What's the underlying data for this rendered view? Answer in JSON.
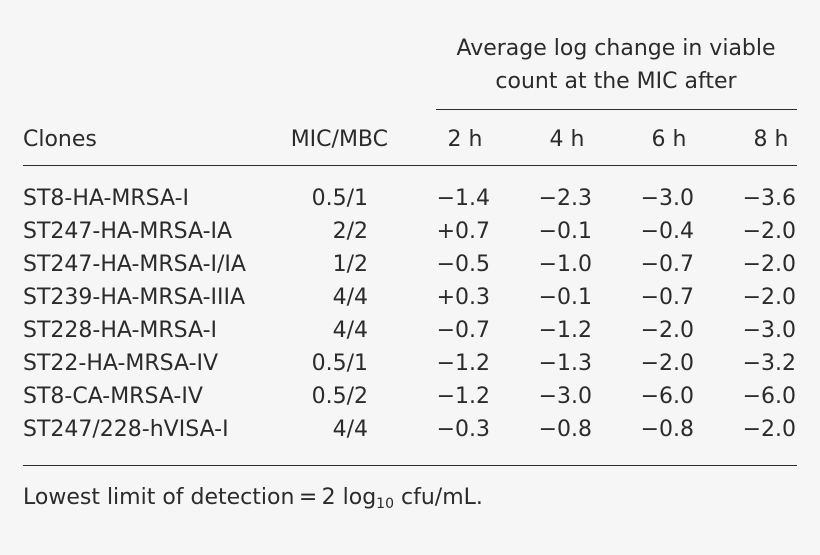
{
  "header": {
    "spanner_line1": "Average log change in viable",
    "spanner_line2": "count at the MIC after",
    "columns": [
      "Clones",
      "MIC/MBC",
      "2 h",
      "4 h",
      "6 h",
      "8 h"
    ]
  },
  "rows": [
    [
      "ST8-HA-MRSA-I",
      "0.5/1",
      "−1.4",
      "−2.3",
      "−3.0",
      "−3.6"
    ],
    [
      "ST247-HA-MRSA-IA",
      "2/2",
      "+0.7",
      "−0.1",
      "−0.4",
      "−2.0"
    ],
    [
      "ST247-HA-MRSA-I/IA",
      "1/2",
      "−0.5",
      "−1.0",
      "−0.7",
      "−2.0"
    ],
    [
      "ST239-HA-MRSA-IIIA",
      "4/4",
      "+0.3",
      "−0.1",
      "−0.7",
      "−2.0"
    ],
    [
      "ST228-HA-MRSA-I",
      "4/4",
      "−0.7",
      "−1.2",
      "−2.0",
      "−3.0"
    ],
    [
      "ST22-HA-MRSA-IV",
      "0.5/1",
      "−1.2",
      "−1.3",
      "−2.0",
      "−3.2"
    ],
    [
      "ST8-CA-MRSA-IV",
      "0.5/2",
      "−1.2",
      "−3.0",
      "−6.0",
      "−6.0"
    ],
    [
      "ST247/228-hVISA-I",
      "4/4",
      "−0.3",
      "−0.8",
      "−0.8",
      "−2.0"
    ]
  ],
  "footnote": {
    "prefix": "Lowest limit of detection = 2 log",
    "subscript": "10",
    "suffix": " cfu/mL."
  }
}
